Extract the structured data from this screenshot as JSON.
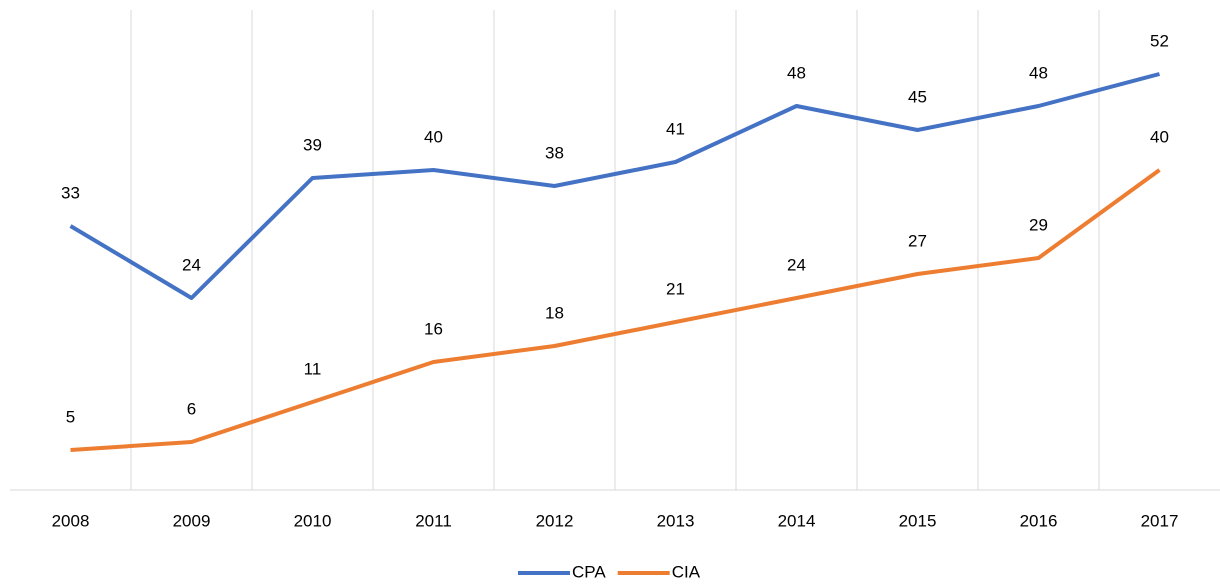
{
  "chart_data": {
    "type": "line",
    "categories": [
      "2008",
      "2009",
      "2010",
      "2011",
      "2012",
      "2013",
      "2014",
      "2015",
      "2016",
      "2017"
    ],
    "series": [
      {
        "name": "CPA",
        "color": "#4472c4",
        "values": [
          33,
          24,
          39,
          40,
          38,
          41,
          48,
          45,
          48,
          52
        ]
      },
      {
        "name": "CIA",
        "color": "#ed7d31",
        "values": [
          5,
          6,
          11,
          16,
          18,
          21,
          24,
          27,
          29,
          40
        ]
      }
    ],
    "ylim": [
      0,
      60
    ],
    "legend": "bottom"
  }
}
